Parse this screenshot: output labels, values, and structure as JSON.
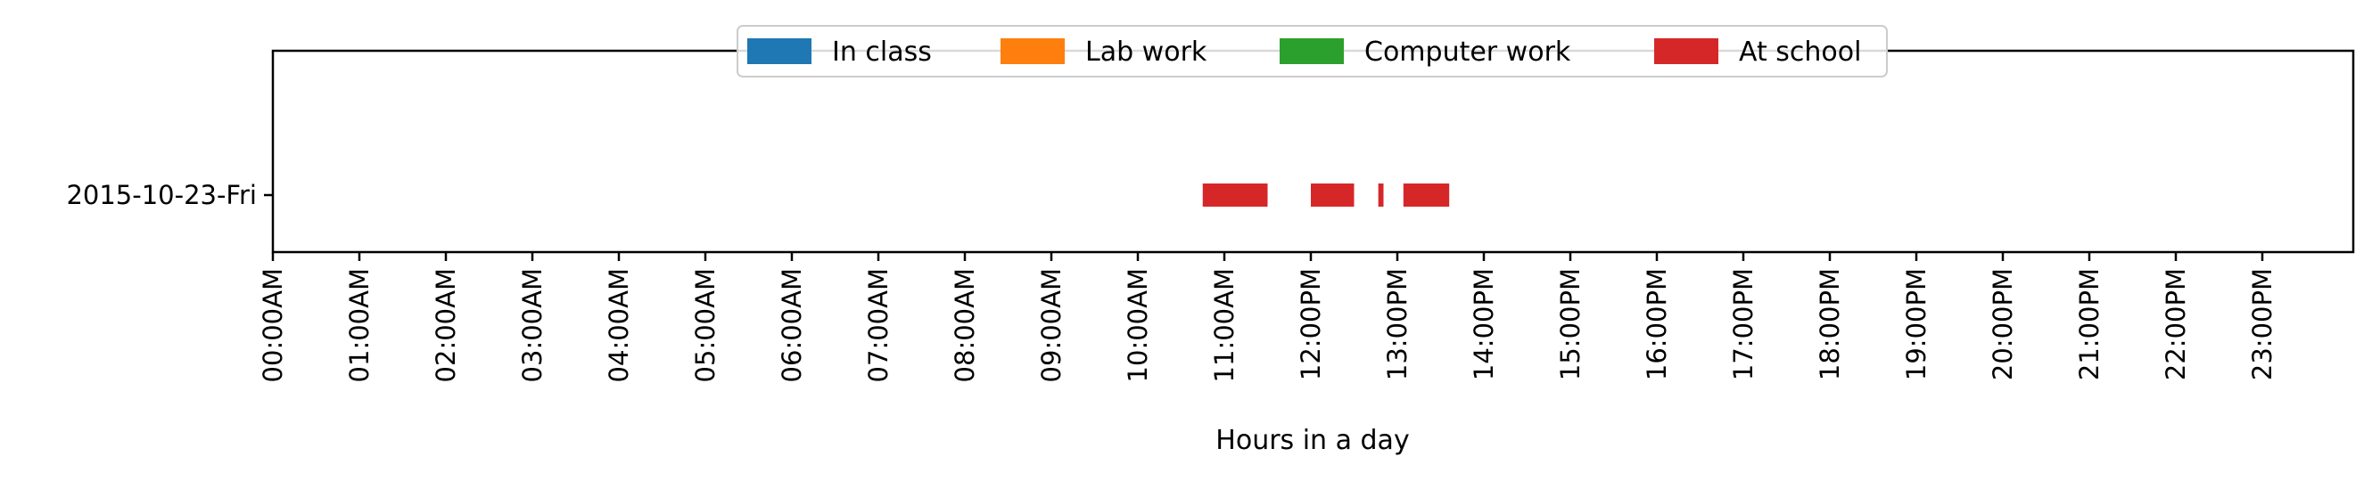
{
  "chart_data": {
    "type": "timeline",
    "xlabel": "Hours in a day",
    "ylabel": "",
    "xlim": [
      0,
      24
    ],
    "x_tick_labels": [
      "00:00AM",
      "01:00AM",
      "02:00AM",
      "03:00AM",
      "04:00AM",
      "05:00AM",
      "06:00AM",
      "07:00AM",
      "08:00AM",
      "09:00AM",
      "10:00AM",
      "11:00AM",
      "12:00PM",
      "13:00PM",
      "14:00PM",
      "15:00PM",
      "16:00PM",
      "17:00PM",
      "18:00PM",
      "19:00PM",
      "20:00PM",
      "21:00PM",
      "22:00PM",
      "23:00PM"
    ],
    "categories": [
      "2015-10-23-Fri"
    ],
    "grid": false,
    "legend_position": "top-center",
    "series": [
      {
        "name": "In class",
        "color": "#1f77b4",
        "intervals": []
      },
      {
        "name": "Lab work",
        "color": "#ff7f0e",
        "intervals": []
      },
      {
        "name": "Computer work",
        "color": "#2ca02c",
        "intervals": []
      },
      {
        "name": "At school",
        "color": "#d62728",
        "intervals": [
          {
            "category": "2015-10-23-Fri",
            "start": 10.75,
            "end": 11.5
          },
          {
            "category": "2015-10-23-Fri",
            "start": 12.0,
            "end": 12.5
          },
          {
            "category": "2015-10-23-Fri",
            "start": 12.78,
            "end": 12.84
          },
          {
            "category": "2015-10-23-Fri",
            "start": 13.07,
            "end": 13.6
          }
        ]
      }
    ]
  }
}
